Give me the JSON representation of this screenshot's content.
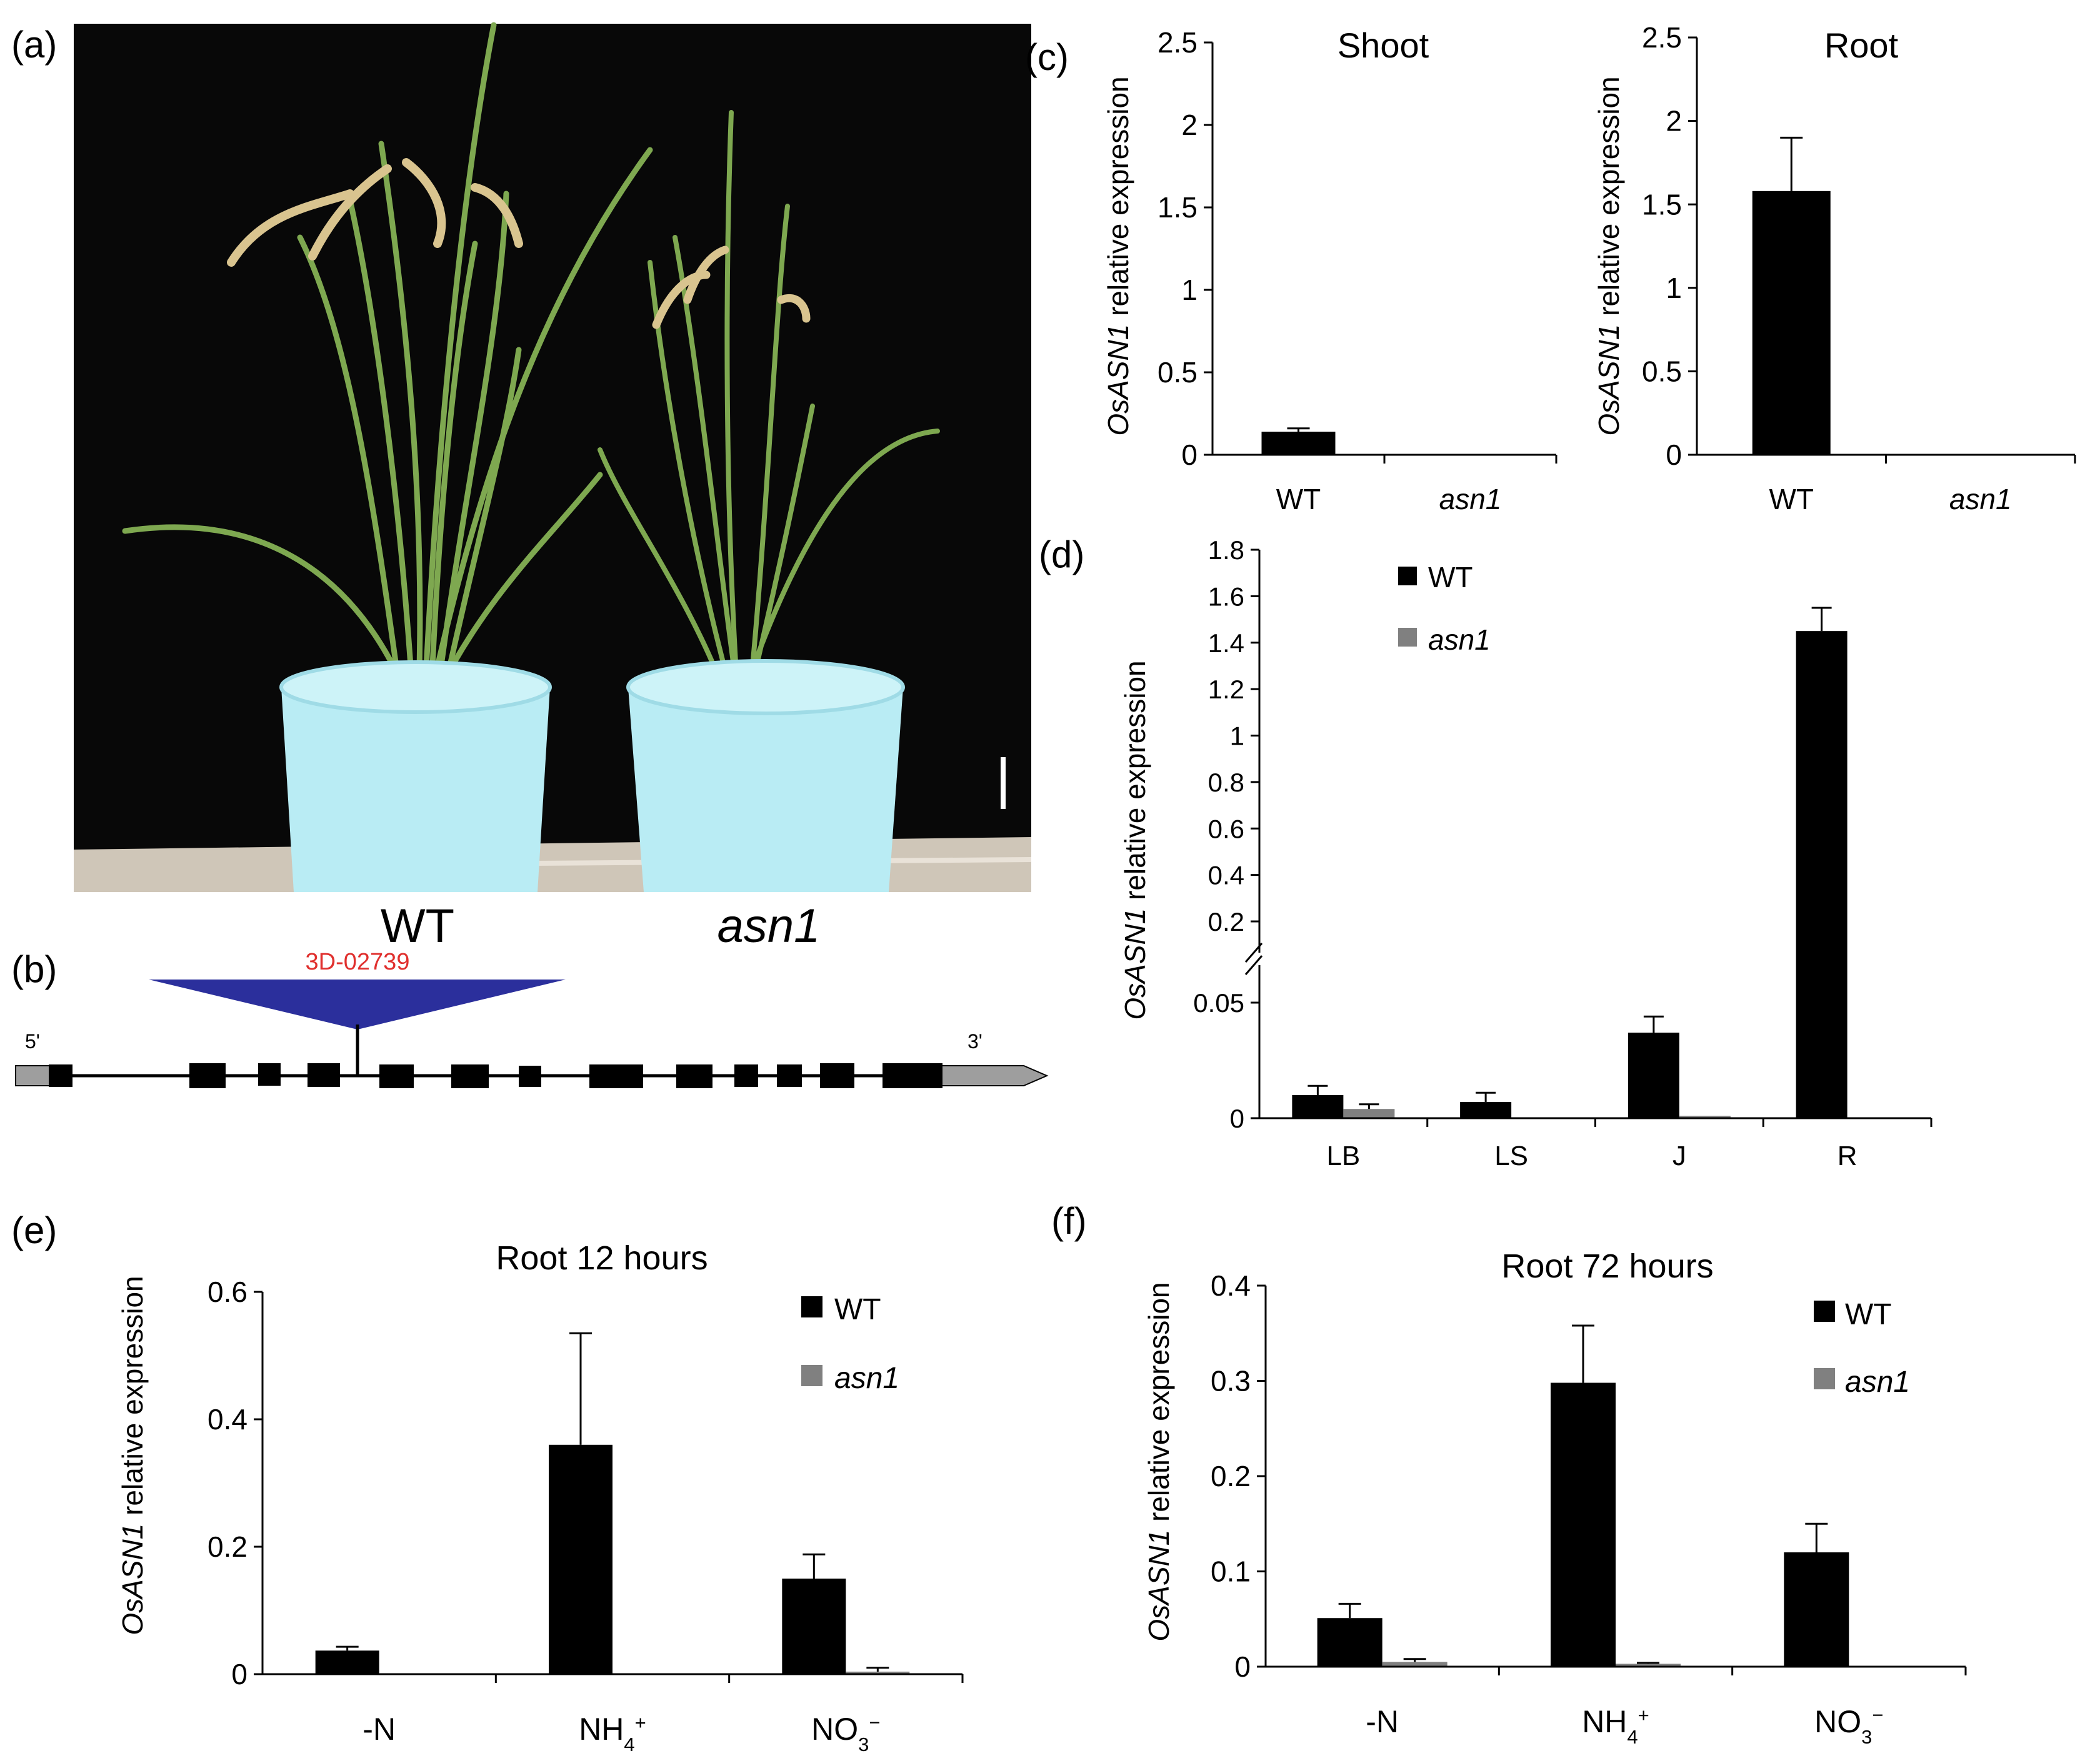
{
  "panel_labels": {
    "a": "(a)",
    "b": "(b)",
    "c": "(c)",
    "d": "(d)",
    "e": "(e)",
    "f": "(f)"
  },
  "panel_a": {
    "wt_label": "WT",
    "mutant_label": "asn1",
    "colors": {
      "background": "#080808",
      "bucket": "#b9ecf4",
      "leaf": "#7ea850",
      "panicle": "#d9c48f",
      "ground": "#cfc6b8"
    }
  },
  "panel_b": {
    "insertion_label": "3D-02739",
    "five_prime": "5'",
    "three_prime": "3'",
    "colors": {
      "insertion": "#2b2f9c",
      "insertion_label": "#e0302e",
      "exon": "#000000",
      "utr": "#9e9e9e"
    }
  },
  "y_axis_label": {
    "gene": "OsASN1",
    "rest": " relative expression"
  },
  "chart_data": [
    {
      "id": "c-shoot",
      "type": "bar",
      "title": "Shoot",
      "categories": [
        "WT",
        "asn1"
      ],
      "italic_categories": [
        false,
        true
      ],
      "values": [
        0.14,
        0
      ],
      "errors": [
        0.02,
        0
      ],
      "yticks": [
        "0",
        "0.5",
        "1",
        "1.5",
        "2",
        "2.5"
      ],
      "ylim": [
        0,
        2.5
      ]
    },
    {
      "id": "c-root",
      "type": "bar",
      "title": "Root",
      "categories": [
        "WT",
        "asn1"
      ],
      "italic_categories": [
        false,
        true
      ],
      "values": [
        1.58,
        0
      ],
      "errors": [
        0.32,
        0
      ],
      "yticks": [
        "0",
        "0.5",
        "1",
        "1.5",
        "2",
        "2.5"
      ],
      "ylim": [
        0,
        2.5
      ]
    },
    {
      "id": "d",
      "type": "bar",
      "categories": [
        "LB",
        "LS",
        "J",
        "R"
      ],
      "series": [
        {
          "name": "WT",
          "values": [
            0.01,
            0.007,
            0.037,
            1.45
          ],
          "errors": [
            0.004,
            0.004,
            0.007,
            0.1
          ],
          "color": "#000000"
        },
        {
          "name": "asn1",
          "values": [
            0.004,
            0,
            0.001,
            0
          ],
          "errors": [
            0.002,
            0,
            0,
            0
          ],
          "color": "#808080"
        }
      ],
      "broken_axis": true,
      "ylim_lower": [
        0,
        0.05
      ],
      "ylim_upper": [
        0.2,
        1.8
      ],
      "yticks_lower": [
        "0",
        "0.05"
      ],
      "yticks_upper": [
        "0.2",
        "0.4",
        "0.6",
        "0.8",
        "1",
        "1.2",
        "1.4",
        "1.6",
        "1.8"
      ],
      "legend_position": "top-left"
    },
    {
      "id": "e",
      "type": "bar",
      "title": "Root 12 hours",
      "categories": [
        "-N",
        "NH4+",
        "NO3-"
      ],
      "series": [
        {
          "name": "WT",
          "values": [
            0.037,
            0.36,
            0.15
          ],
          "errors": [
            0.006,
            0.175,
            0.038
          ],
          "color": "#000000"
        },
        {
          "name": "asn1",
          "values": [
            0,
            0,
            0.004
          ],
          "errors": [
            0,
            0,
            0.006
          ],
          "color": "#808080"
        }
      ],
      "yticks": [
        "0",
        "0.2",
        "0.4",
        "0.6"
      ],
      "ylim": [
        0,
        0.6
      ],
      "legend_position": "top-right"
    },
    {
      "id": "f",
      "type": "bar",
      "title": "Root 72 hours",
      "categories": [
        "-N",
        "NH4+",
        "NO3-"
      ],
      "series": [
        {
          "name": "WT",
          "values": [
            0.051,
            0.298,
            0.12
          ],
          "errors": [
            0.015,
            0.06,
            0.03
          ],
          "color": "#000000"
        },
        {
          "name": "asn1",
          "values": [
            0.005,
            0.003,
            0
          ],
          "errors": [
            0.003,
            0.001,
            0
          ],
          "color": "#808080"
        }
      ],
      "yticks": [
        "0",
        "0.1",
        "0.2",
        "0.3",
        "0.4"
      ],
      "ylim": [
        0,
        0.4
      ],
      "legend_position": "top-right"
    }
  ]
}
